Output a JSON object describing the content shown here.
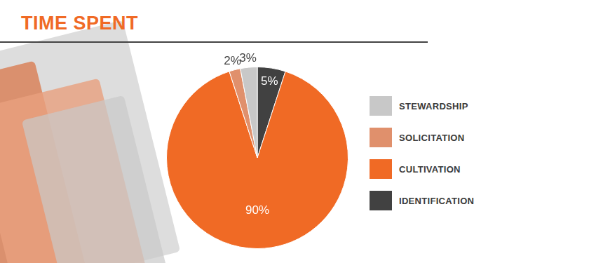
{
  "chart_data": {
    "type": "pie",
    "title": "TIME SPENT",
    "categories": [
      "IDENTIFICATION",
      "CULTIVATION",
      "SOLICITATION",
      "STEWARDSHIP"
    ],
    "values": [
      5,
      90,
      2,
      3
    ],
    "value_labels": [
      "5%",
      "90%",
      "2%",
      "3%"
    ],
    "colors": [
      "#414141",
      "#f06a25",
      "#e0906c",
      "#c8c8c8"
    ],
    "data_labels": true,
    "legend": "right"
  }
}
